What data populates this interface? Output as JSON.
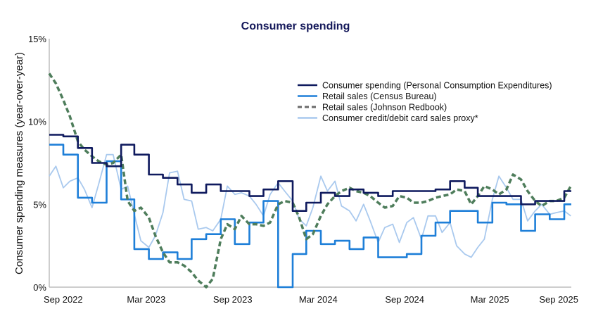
{
  "chart_data": {
    "type": "line",
    "title": "Consumer spending",
    "xlabel": "",
    "ylabel": "Consumer spending measures (year-over-year)",
    "ylim": [
      0,
      15
    ],
    "xlim": [
      "2022-09-01",
      "2025-09-16"
    ],
    "yticks": [
      "0%",
      "5%",
      "10%",
      "15%"
    ],
    "ytick_values": [
      0,
      5,
      10,
      15
    ],
    "xticks": [
      {
        "date": "2022-09-01",
        "label": "Sep 2022"
      },
      {
        "date": "2023-03-01",
        "label": "Mar 2023"
      },
      {
        "date": "2023-09-01",
        "label": "Sep 2023"
      },
      {
        "date": "2024-03-01",
        "label": "Mar 2024"
      },
      {
        "date": "2024-09-01",
        "label": "Sep 2024"
      },
      {
        "date": "2025-03-01",
        "label": "Mar 2025"
      },
      {
        "date": "2025-09-01",
        "label": "Sep 2025"
      }
    ],
    "grid": false,
    "legend_position": "top-right",
    "monthly_dates": [
      "2022-09-01",
      "2022-10-01",
      "2022-11-01",
      "2022-12-01",
      "2023-01-01",
      "2023-02-01",
      "2023-03-01",
      "2023-04-01",
      "2023-05-01",
      "2023-06-01",
      "2023-07-01",
      "2023-08-01",
      "2023-09-01",
      "2023-10-01",
      "2023-11-01",
      "2023-12-01",
      "2024-01-01",
      "2024-02-01",
      "2024-03-01",
      "2024-04-01",
      "2024-05-01",
      "2024-06-01",
      "2024-07-01",
      "2024-08-01",
      "2024-09-01",
      "2024-10-01",
      "2024-11-01",
      "2024-12-01",
      "2025-01-01",
      "2025-02-01",
      "2025-03-01",
      "2025-04-01",
      "2025-05-01",
      "2025-06-01",
      "2025-07-01",
      "2025-08-01",
      "2025-09-01"
    ],
    "semimonthly_dates": [
      "2022-09-01",
      "2022-09-15",
      "2022-10-01",
      "2022-10-15",
      "2022-11-01",
      "2022-11-15",
      "2022-12-01",
      "2022-12-15",
      "2023-01-01",
      "2023-01-15",
      "2023-02-01",
      "2023-02-15",
      "2023-03-01",
      "2023-03-15",
      "2023-04-01",
      "2023-04-15",
      "2023-05-01",
      "2023-05-15",
      "2023-06-01",
      "2023-06-15",
      "2023-07-01",
      "2023-07-15",
      "2023-08-01",
      "2023-08-15",
      "2023-09-01",
      "2023-09-15",
      "2023-10-01",
      "2023-10-15",
      "2023-11-01",
      "2023-11-15",
      "2023-12-01",
      "2023-12-15",
      "2024-01-01",
      "2024-01-15",
      "2024-02-01",
      "2024-02-15",
      "2024-03-01",
      "2024-03-15",
      "2024-04-01",
      "2024-04-15",
      "2024-05-01",
      "2024-05-15",
      "2024-06-01",
      "2024-06-15",
      "2024-07-01",
      "2024-07-15",
      "2024-08-01",
      "2024-08-15",
      "2024-09-01",
      "2024-09-15",
      "2024-10-01",
      "2024-10-15",
      "2024-11-01",
      "2024-11-15",
      "2024-12-01",
      "2024-12-15",
      "2025-01-01",
      "2025-01-15",
      "2025-02-01",
      "2025-02-15",
      "2025-03-01",
      "2025-03-15",
      "2025-04-01",
      "2025-04-15",
      "2025-05-01",
      "2025-05-15",
      "2025-06-01",
      "2025-06-15",
      "2025-07-01",
      "2025-07-15",
      "2025-08-01",
      "2025-08-15",
      "2025-09-01",
      "2025-09-15"
    ],
    "series": [
      {
        "name": "Consumer spending (Personal Consumption Expenditures)",
        "color": "#0f1a5e",
        "style": "step",
        "dates_key": "monthly_dates",
        "values": [
          9.2,
          9.1,
          8.4,
          7.5,
          7.3,
          8.6,
          8.0,
          6.8,
          6.6,
          6.2,
          5.7,
          6.2,
          5.8,
          5.8,
          5.5,
          5.9,
          6.4,
          4.6,
          5.1,
          5.7,
          5.5,
          5.9,
          5.7,
          5.5,
          5.8,
          5.8,
          5.8,
          5.9,
          6.4,
          6.0,
          5.5,
          5.5,
          5.5,
          5.0,
          5.2,
          5.2,
          5.8
        ]
      },
      {
        "name": "Retail sales (Census Bureau)",
        "color": "#1e7fd8",
        "style": "step",
        "dates_key": "monthly_dates",
        "values": [
          8.6,
          8.0,
          5.4,
          5.1,
          7.6,
          5.3,
          2.3,
          1.7,
          2.1,
          1.7,
          2.9,
          3.2,
          4.1,
          2.6,
          3.9,
          5.2,
          0,
          2.0,
          3.4,
          2.6,
          2.8,
          2.3,
          3.0,
          1.8,
          1.8,
          2.0,
          3.1,
          3.9,
          4.6,
          4.6,
          3.9,
          5.1,
          5.0,
          3.4,
          4.4,
          4.1,
          5.0
        ]
      },
      {
        "name": "Retail sales (Johnson Redbook)",
        "color": "#4e7d5b",
        "style": "dashed",
        "dates_key": "semimonthly_dates",
        "values": [
          12.9,
          12.3,
          11.3,
          10.3,
          8.8,
          8.3,
          7.9,
          7.6,
          7.4,
          7.5,
          8.0,
          5.2,
          4.6,
          4.8,
          4.2,
          3.1,
          2.1,
          1.5,
          1.5,
          1.3,
          0.9,
          0.4,
          0,
          0.5,
          2.9,
          3.8,
          3.5,
          4.3,
          3.8,
          3.8,
          3.7,
          3.9,
          5.0,
          5.2,
          5.1,
          4.2,
          2.9,
          3.2,
          4.3,
          5.0,
          5.5,
          5.8,
          6.0,
          5.8,
          5.7,
          5.5,
          5.1,
          4.8,
          4.9,
          5.5,
          5.4,
          5.1,
          5.1,
          5.2,
          5.4,
          5.5,
          5.6,
          5.9,
          5.8,
          5.0,
          5.5,
          6.1,
          5.9,
          5.6,
          5.9,
          6.8,
          6.5,
          5.8,
          5.2,
          4.9,
          5.2,
          5.2,
          5.4,
          6.1
        ]
      },
      {
        "name": "Consumer credit/debit card sales proxy*",
        "color": "#a9c9ee",
        "style": "line",
        "dates_key": "semimonthly_dates",
        "values": [
          6.7,
          7.3,
          6.0,
          6.4,
          6.6,
          5.9,
          4.8,
          6.2,
          8.0,
          8.0,
          5.9,
          6.1,
          4.4,
          2.8,
          2.4,
          3.1,
          4.5,
          6.9,
          7.0,
          5.3,
          5.2,
          3.5,
          3.6,
          3.4,
          4.1,
          6.1,
          5.6,
          5.7,
          5.5,
          5.0,
          4.3,
          5.6,
          6.3,
          5.8,
          5.2,
          4.1,
          3.7,
          4.8,
          6.7,
          5.8,
          6.4,
          4.9,
          4.6,
          4.0,
          5.0,
          4.0,
          2.7,
          3.6,
          3.8,
          2.7,
          3.9,
          4.2,
          2.9,
          4.3,
          4.3,
          3.3,
          3.9,
          2.5,
          2.0,
          1.8,
          2.4,
          2.9,
          5.3,
          6.7,
          6.0,
          5.3,
          5.3,
          4.0,
          4.6,
          5.0,
          4.4,
          4.5,
          4.6,
          4.3
        ]
      }
    ]
  }
}
